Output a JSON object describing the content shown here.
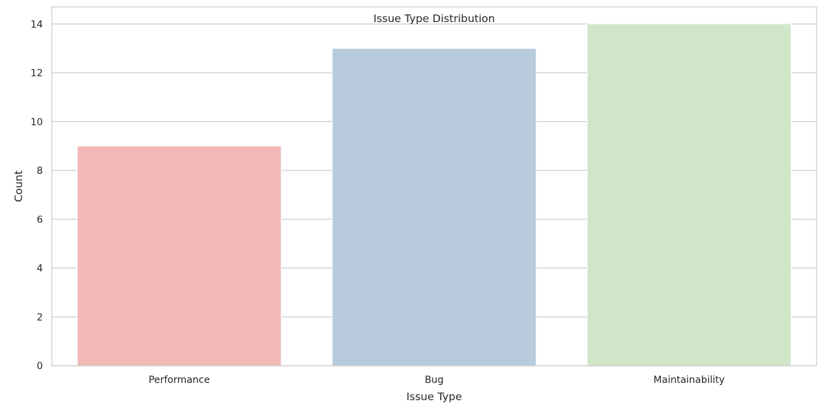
{
  "chart_data": {
    "type": "bar",
    "title": "Issue Type Distribution",
    "xlabel": "Issue Type",
    "ylabel": "Count",
    "categories": [
      "Performance",
      "Bug",
      "Maintainability"
    ],
    "values": [
      9,
      13,
      14
    ],
    "colors": [
      "#f1b9b6",
      "#b8cbdd",
      "#d0e6c9"
    ],
    "ylim": [
      0,
      14.7
    ],
    "yticks": [
      0,
      2,
      4,
      6,
      8,
      10,
      12,
      14
    ],
    "grid": true,
    "legend": "none"
  },
  "style": {
    "grid_color": "#cccccc",
    "spine_color": "#cccccc",
    "text_color": "#262626"
  }
}
